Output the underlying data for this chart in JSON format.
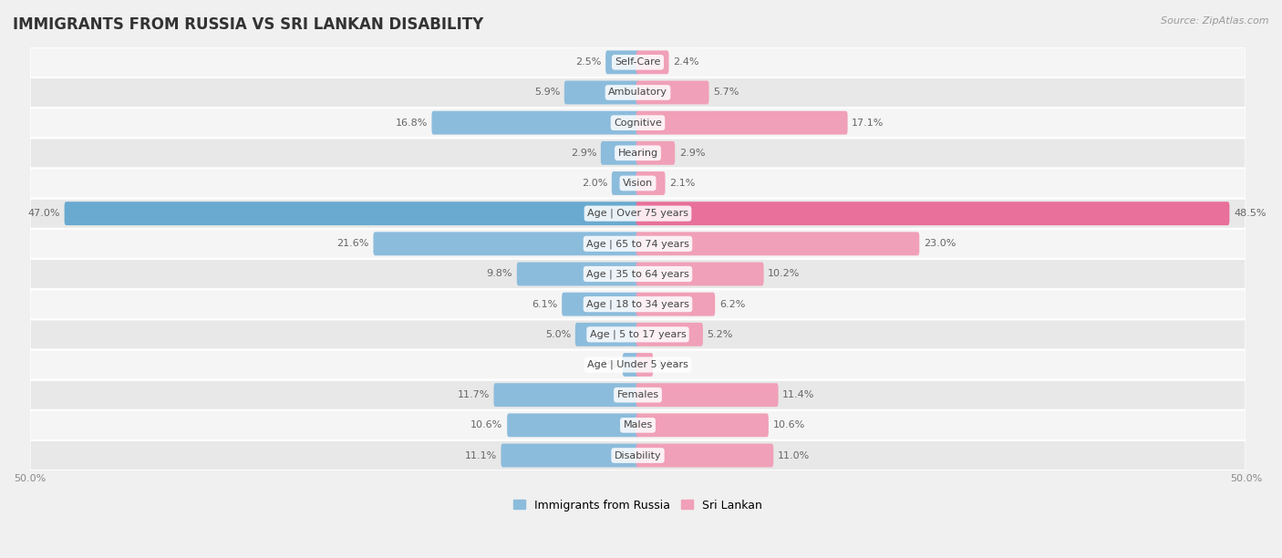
{
  "title": "IMMIGRANTS FROM RUSSIA VS SRI LANKAN DISABILITY",
  "source": "Source: ZipAtlas.com",
  "categories": [
    "Disability",
    "Males",
    "Females",
    "Age | Under 5 years",
    "Age | 5 to 17 years",
    "Age | 18 to 34 years",
    "Age | 35 to 64 years",
    "Age | 65 to 74 years",
    "Age | Over 75 years",
    "Vision",
    "Hearing",
    "Cognitive",
    "Ambulatory",
    "Self-Care"
  ],
  "russia_values": [
    11.1,
    10.6,
    11.7,
    1.1,
    5.0,
    6.1,
    9.8,
    21.6,
    47.0,
    2.0,
    2.9,
    16.8,
    5.9,
    2.5
  ],
  "srilanka_values": [
    11.0,
    10.6,
    11.4,
    1.1,
    5.2,
    6.2,
    10.2,
    23.0,
    48.5,
    2.1,
    2.9,
    17.1,
    5.7,
    2.4
  ],
  "russia_color": "#8cbcdc",
  "srilanka_color": "#f0a0b8",
  "over75_russia_color": "#6aaad0",
  "over75_srilanka_color": "#e8709a",
  "axis_limit": 50.0,
  "background_color": "#f0f0f0",
  "row_color_odd": "#e8e8e8",
  "row_color_even": "#f5f5f5",
  "bar_height": 0.48,
  "title_fontsize": 12,
  "label_fontsize": 8,
  "value_fontsize": 8,
  "tick_fontsize": 8,
  "legend_fontsize": 9
}
